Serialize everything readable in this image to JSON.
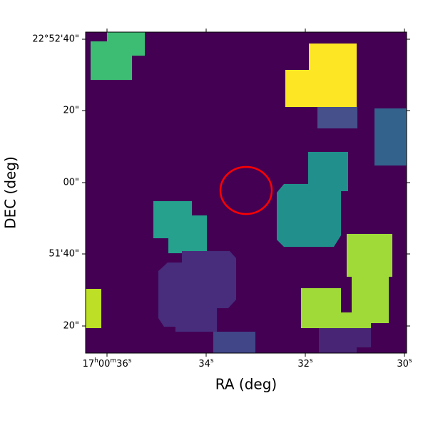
{
  "axes": {
    "x_label": "RA (deg)",
    "y_label": "DEC (deg)",
    "x_ticks": [
      [
        "17",
        "h",
        "00",
        "m",
        "36",
        "s"
      ],
      [
        "34",
        "s"
      ],
      [
        "32",
        "s"
      ],
      [
        "30",
        "s"
      ]
    ],
    "y_ticks": [
      "22°52'40\"",
      "20\"",
      "00\"",
      "51'40\"",
      "20\""
    ]
  }
}
